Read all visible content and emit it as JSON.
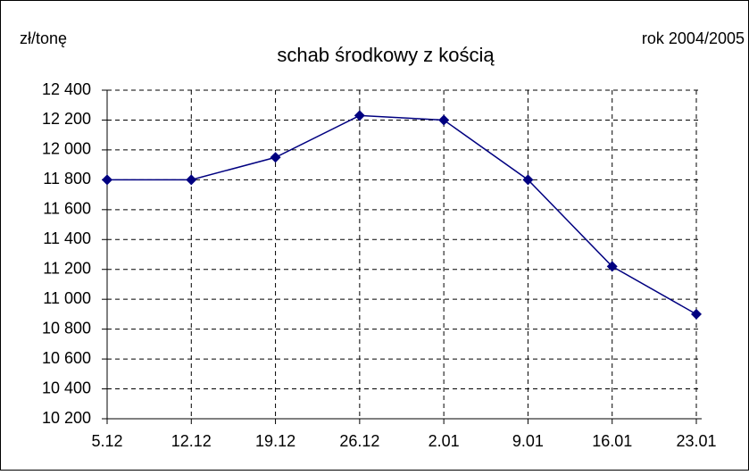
{
  "chart_data": {
    "type": "line",
    "title": "schab środkowy z kością",
    "y_axis_label": "zł/tonę",
    "annotation": "rok 2004/2005",
    "categories": [
      "5.12",
      "12.12",
      "19.12",
      "26.12",
      "2.01",
      "9.01",
      "16.01",
      "23.01"
    ],
    "series": [
      {
        "name": "schab środkowy z kością",
        "color": "#000080",
        "values": [
          11800,
          11800,
          11950,
          12230,
          12200,
          11800,
          11220,
          10900
        ]
      }
    ],
    "ylim": [
      10200,
      12400
    ],
    "yticks": [
      {
        "value": 10200,
        "label": "10 200"
      },
      {
        "value": 10400,
        "label": "10 400"
      },
      {
        "value": 10600,
        "label": "10 600"
      },
      {
        "value": 10800,
        "label": "10 800"
      },
      {
        "value": 11000,
        "label": "11 000"
      },
      {
        "value": 11200,
        "label": "11 200"
      },
      {
        "value": 11400,
        "label": "11 400"
      },
      {
        "value": 11600,
        "label": "11 600"
      },
      {
        "value": 11800,
        "label": "11 800"
      },
      {
        "value": 12000,
        "label": "12 000"
      },
      {
        "value": 12200,
        "label": "12 200"
      },
      {
        "value": 12400,
        "label": "12 400"
      }
    ],
    "grid": true
  }
}
